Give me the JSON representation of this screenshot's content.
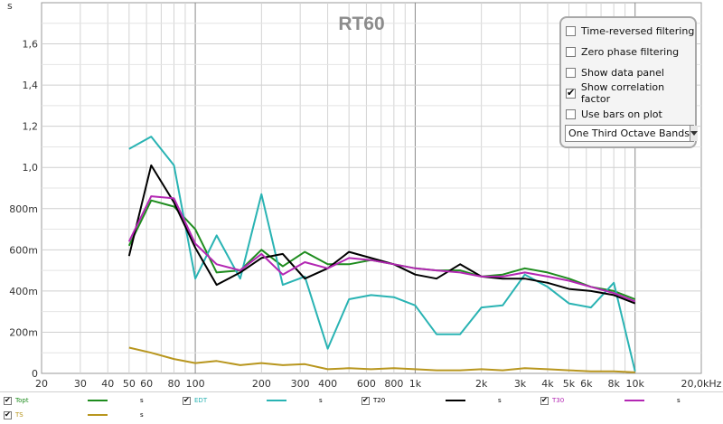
{
  "chart_data": {
    "type": "line",
    "title": "RT60",
    "ylabel": "s",
    "xlabel": "",
    "xscale": "log",
    "xlim": [
      20,
      20000
    ],
    "ylim": [
      0,
      1.8
    ],
    "grid": true,
    "x_ticks": [
      {
        "v": 20,
        "label": "20"
      },
      {
        "v": 30,
        "label": "30"
      },
      {
        "v": 40,
        "label": "40"
      },
      {
        "v": 50,
        "label": "50"
      },
      {
        "v": 60,
        "label": "60"
      },
      {
        "v": 80,
        "label": "80"
      },
      {
        "v": 100,
        "label": "100"
      },
      {
        "v": 200,
        "label": "200"
      },
      {
        "v": 300,
        "label": "300"
      },
      {
        "v": 400,
        "label": "400"
      },
      {
        "v": 600,
        "label": "600"
      },
      {
        "v": 800,
        "label": "800"
      },
      {
        "v": 1000,
        "label": "1k"
      },
      {
        "v": 2000,
        "label": "2k"
      },
      {
        "v": 3000,
        "label": "3k"
      },
      {
        "v": 4000,
        "label": "4k"
      },
      {
        "v": 5000,
        "label": "5k"
      },
      {
        "v": 6000,
        "label": "6k"
      },
      {
        "v": 8000,
        "label": "8k"
      },
      {
        "v": 10000,
        "label": "10k"
      },
      {
        "v": 20000,
        "label": "20,0kHz"
      }
    ],
    "y_ticks": [
      {
        "v": 0,
        "label": "0"
      },
      {
        "v": 0.2,
        "label": "200m"
      },
      {
        "v": 0.4,
        "label": "400m"
      },
      {
        "v": 0.6,
        "label": "600m"
      },
      {
        "v": 0.8,
        "label": "800m"
      },
      {
        "v": 1.0,
        "label": "1,0"
      },
      {
        "v": 1.2,
        "label": "1,2"
      },
      {
        "v": 1.4,
        "label": "1,4"
      },
      {
        "v": 1.6,
        "label": "1,6"
      }
    ],
    "x": [
      50,
      63,
      80,
      100,
      125,
      160,
      200,
      250,
      315,
      400,
      500,
      630,
      800,
      1000,
      1250,
      1600,
      2000,
      2500,
      3150,
      4000,
      5000,
      6300,
      8000,
      10000
    ],
    "series": [
      {
        "name": "Topt",
        "color": "#1e8c1e",
        "values": [
          0.62,
          0.84,
          0.81,
          0.7,
          0.49,
          0.5,
          0.6,
          0.52,
          0.59,
          0.53,
          0.53,
          0.55,
          0.53,
          0.51,
          0.5,
          0.5,
          0.47,
          0.48,
          0.51,
          0.49,
          0.46,
          0.42,
          0.4,
          0.36
        ]
      },
      {
        "name": "EDT",
        "color": "#29b3b3",
        "values": [
          1.09,
          1.15,
          1.01,
          0.46,
          0.67,
          0.46,
          0.87,
          0.43,
          0.47,
          0.12,
          0.36,
          0.38,
          0.37,
          0.33,
          0.19,
          0.19,
          0.32,
          0.33,
          0.48,
          0.42,
          0.34,
          0.32,
          0.44,
          0.01
        ]
      },
      {
        "name": "T20",
        "color": "#000000",
        "values": [
          0.57,
          1.01,
          0.83,
          0.61,
          0.43,
          0.49,
          0.56,
          0.58,
          0.46,
          0.51,
          0.59,
          0.56,
          0.53,
          0.48,
          0.46,
          0.53,
          0.47,
          0.46,
          0.46,
          0.44,
          0.41,
          0.4,
          0.38,
          0.34
        ]
      },
      {
        "name": "T30",
        "color": "#b327b3",
        "values": [
          0.64,
          0.86,
          0.85,
          0.63,
          0.53,
          0.5,
          0.58,
          0.48,
          0.54,
          0.51,
          0.56,
          0.55,
          0.53,
          0.51,
          0.5,
          0.49,
          0.47,
          0.47,
          0.49,
          0.47,
          0.45,
          0.42,
          0.39,
          0.35
        ]
      },
      {
        "name": "TS",
        "color": "#b8961e",
        "values": [
          0.125,
          0.1,
          0.07,
          0.05,
          0.06,
          0.04,
          0.05,
          0.04,
          0.045,
          0.02,
          0.025,
          0.02,
          0.025,
          0.02,
          0.015,
          0.015,
          0.02,
          0.015,
          0.025,
          0.02,
          0.015,
          0.01,
          0.01,
          0.005
        ]
      }
    ]
  },
  "options": {
    "items": [
      {
        "label": "Time-reversed filtering",
        "checked": false
      },
      {
        "label": "Zero phase filtering",
        "checked": false
      },
      {
        "label": "Show data panel",
        "checked": false
      },
      {
        "label": "Show correlation factor",
        "checked": true
      },
      {
        "label": "Use bars on plot",
        "checked": false
      }
    ],
    "band_select": "One Third Octave Bands"
  },
  "legend": {
    "unit": "s",
    "items": [
      {
        "name": "Topt",
        "color": "#1e8c1e",
        "checked": true
      },
      {
        "name": "EDT",
        "color": "#29b3b3",
        "checked": true
      },
      {
        "name": "T20",
        "color": "#000000",
        "checked": true
      },
      {
        "name": "T30",
        "color": "#b327b3",
        "checked": true
      },
      {
        "name": "TS",
        "color": "#b8961e",
        "checked": true
      }
    ]
  }
}
